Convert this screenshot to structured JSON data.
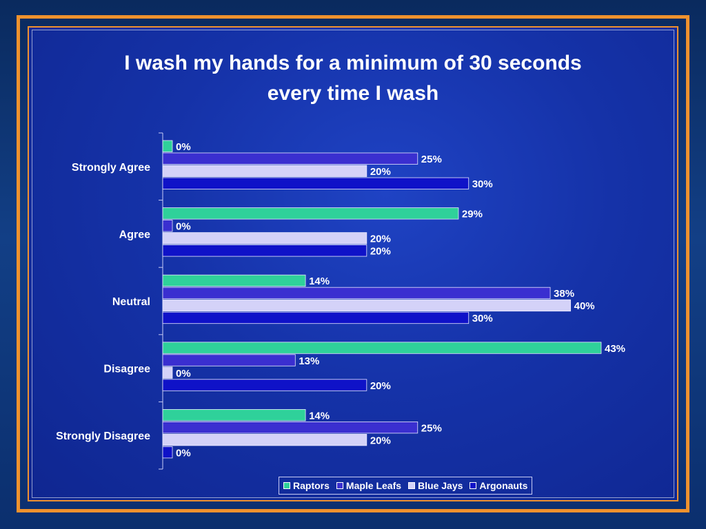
{
  "slide": {
    "title_line1": "I wash my hands for a minimum of 30 seconds",
    "title_line2": "every time I wash"
  },
  "chart_data": {
    "type": "bar",
    "orientation": "horizontal",
    "title": "I wash my hands for a minimum of 30 seconds every time I wash",
    "categories": [
      "Strongly Agree",
      "Agree",
      "Neutral",
      "Disagree",
      "Strongly Disagree"
    ],
    "series": [
      {
        "name": "Raptors",
        "color": "#2fd19a",
        "values": [
          0,
          29,
          14,
          43,
          14
        ]
      },
      {
        "name": "Maple Leafs",
        "color": "#3a2fd0",
        "values": [
          25,
          0,
          38,
          13,
          25
        ]
      },
      {
        "name": "Blue Jays",
        "color": "#d4d2f8",
        "values": [
          20,
          20,
          40,
          0,
          20
        ]
      },
      {
        "name": "Argonauts",
        "color": "#0f12c8",
        "values": [
          30,
          20,
          30,
          20,
          0
        ]
      }
    ],
    "value_suffix": "%",
    "xlim": [
      0,
      45
    ],
    "grid": false,
    "legend_position": "bottom"
  }
}
